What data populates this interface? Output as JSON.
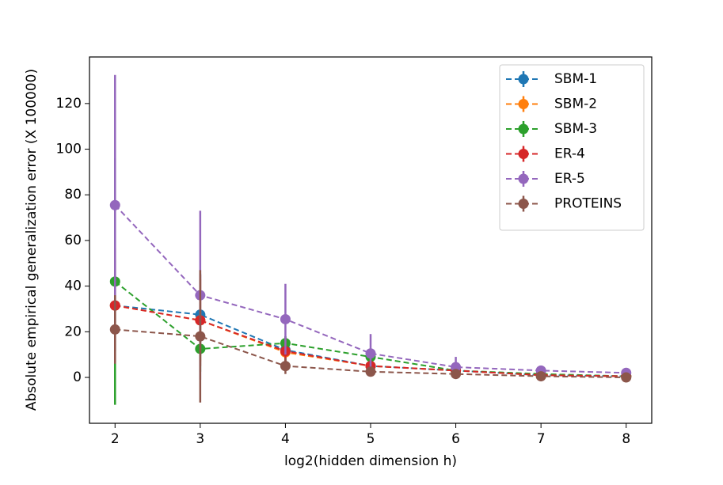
{
  "chart_data": {
    "type": "line",
    "xlabel": "log2(hidden dimension h)",
    "ylabel": "Absolute empirical generalization error (X 100000)",
    "x": [
      2,
      3,
      4,
      5,
      6,
      7,
      8
    ],
    "xlim": [
      1.7,
      8.3
    ],
    "xticks": [
      2,
      3,
      4,
      5,
      6,
      7,
      8
    ],
    "ylim": [
      -20.1,
      140.4
    ],
    "yticks": [
      0,
      20,
      40,
      60,
      80,
      100,
      120
    ],
    "legend": "upper right",
    "series": [
      {
        "name": "SBM-1",
        "color": "#1f77b4",
        "values": [
          31.5,
          27.5,
          12,
          5,
          3,
          1,
          0.5
        ],
        "errors": [
          20,
          18,
          6,
          3,
          1.5,
          0.5,
          0.3
        ]
      },
      {
        "name": "SBM-2",
        "color": "#ff7f0e",
        "values": [
          31.5,
          25,
          11,
          5,
          3,
          1,
          0.5
        ],
        "errors": [
          20,
          18,
          6,
          3,
          1.5,
          0.5,
          0.3
        ]
      },
      {
        "name": "SBM-3",
        "color": "#2ca02c",
        "values": [
          42,
          12.5,
          15,
          9,
          3,
          1.5,
          0.5
        ],
        "errors": [
          54,
          10,
          3,
          2,
          1,
          0.5,
          0.3
        ]
      },
      {
        "name": "ER-4",
        "color": "#d62728",
        "values": [
          31.5,
          25,
          11.5,
          5,
          3,
          1,
          0.5
        ],
        "errors": [
          25,
          20,
          6,
          3,
          1.5,
          0.5,
          0.3
        ]
      },
      {
        "name": "ER-5",
        "color": "#9467bd",
        "values": [
          75.5,
          36,
          25.5,
          10.5,
          4.5,
          3,
          2
        ],
        "errors": [
          57,
          37,
          15.5,
          8.5,
          4.5,
          1,
          0.5
        ]
      },
      {
        "name": "PROTEINS",
        "color": "#8c564b",
        "values": [
          21,
          18,
          5,
          2.5,
          1.5,
          0.5,
          0
        ],
        "errors": [
          15,
          29,
          3.5,
          1,
          0.5,
          0.3,
          0.2
        ]
      }
    ]
  }
}
